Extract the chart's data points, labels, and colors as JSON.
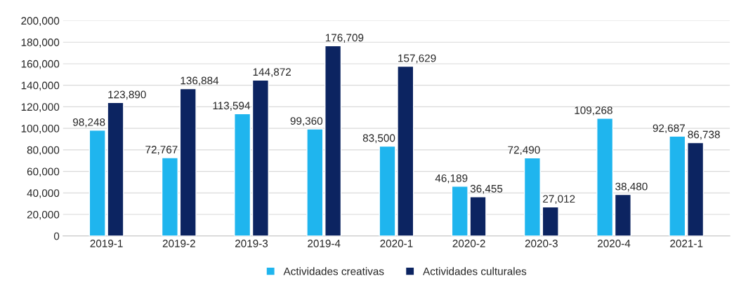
{
  "chart_data": {
    "type": "bar",
    "categories": [
      "2019-1",
      "2019-2",
      "2019-3",
      "2019-4",
      "2020-1",
      "2020-2",
      "2020-3",
      "2020-4",
      "2021-1"
    ],
    "series": [
      {
        "name": "Actividades creativas",
        "color": "#1fb5ee",
        "values": [
          98248,
          72767,
          113594,
          99360,
          83500,
          46189,
          72490,
          109268,
          92687
        ],
        "value_labels": [
          "98,248",
          "72,767",
          "113,594",
          "99,360",
          "83,500",
          "46,189",
          "72,490",
          "109,268",
          "92,687"
        ]
      },
      {
        "name": "Actividades culturales",
        "color": "#0c2461",
        "values": [
          123890,
          136884,
          144872,
          176709,
          157629,
          36455,
          27012,
          38480,
          86738
        ],
        "value_labels": [
          "123,890",
          "136,884",
          "144,872",
          "176,709",
          "157,629",
          "36,455",
          "27,012",
          "38,480",
          "86,738"
        ]
      }
    ],
    "ylim": [
      0,
      200000
    ],
    "yticks": [
      {
        "value": 0,
        "label": "0"
      },
      {
        "value": 20000,
        "label": "20,000"
      },
      {
        "value": 40000,
        "label": "40,000"
      },
      {
        "value": 60000,
        "label": "60,000"
      },
      {
        "value": 80000,
        "label": "80,000"
      },
      {
        "value": 100000,
        "label": "100,000"
      },
      {
        "value": 120000,
        "label": "120,000"
      },
      {
        "value": 140000,
        "label": "140,000"
      },
      {
        "value": 160000,
        "label": "160,000"
      },
      {
        "value": 180000,
        "label": "180,000"
      },
      {
        "value": 200000,
        "label": "200,000"
      }
    ],
    "grid": "y",
    "legend": "bottom"
  }
}
